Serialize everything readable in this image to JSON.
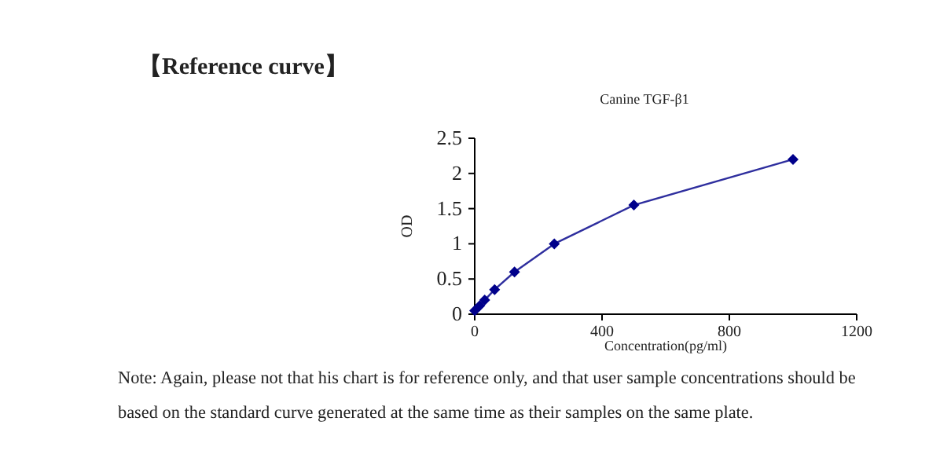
{
  "chart_data": {
    "type": "line",
    "title": "Canine TGF-β1",
    "xlabel": "Concentration(pg/ml)",
    "ylabel": "OD",
    "x": [
      0,
      15.6,
      31.3,
      62.5,
      125,
      250,
      500,
      1000
    ],
    "series": [
      {
        "color": "#2e2e9e",
        "values": [
          0.05,
          0.12,
          0.2,
          0.35,
          0.6,
          1.0,
          1.55,
          2.2
        ]
      }
    ],
    "xlim": [
      0,
      1200
    ],
    "xticks": [
      0,
      400,
      800,
      1200
    ],
    "ylim": [
      0,
      2.5
    ],
    "yticks": [
      0,
      0.5,
      1,
      1.5,
      2,
      2.5
    ],
    "grid": false,
    "marker": "diamond",
    "line_style": "solid",
    "annotations": [
      "【Reference curve】",
      "Note: Again, please not that his chart is for reference only, and that user sample concentrations should be\nbased on the standard curve generated at the same time as their samples on the same plate."
    ]
  }
}
